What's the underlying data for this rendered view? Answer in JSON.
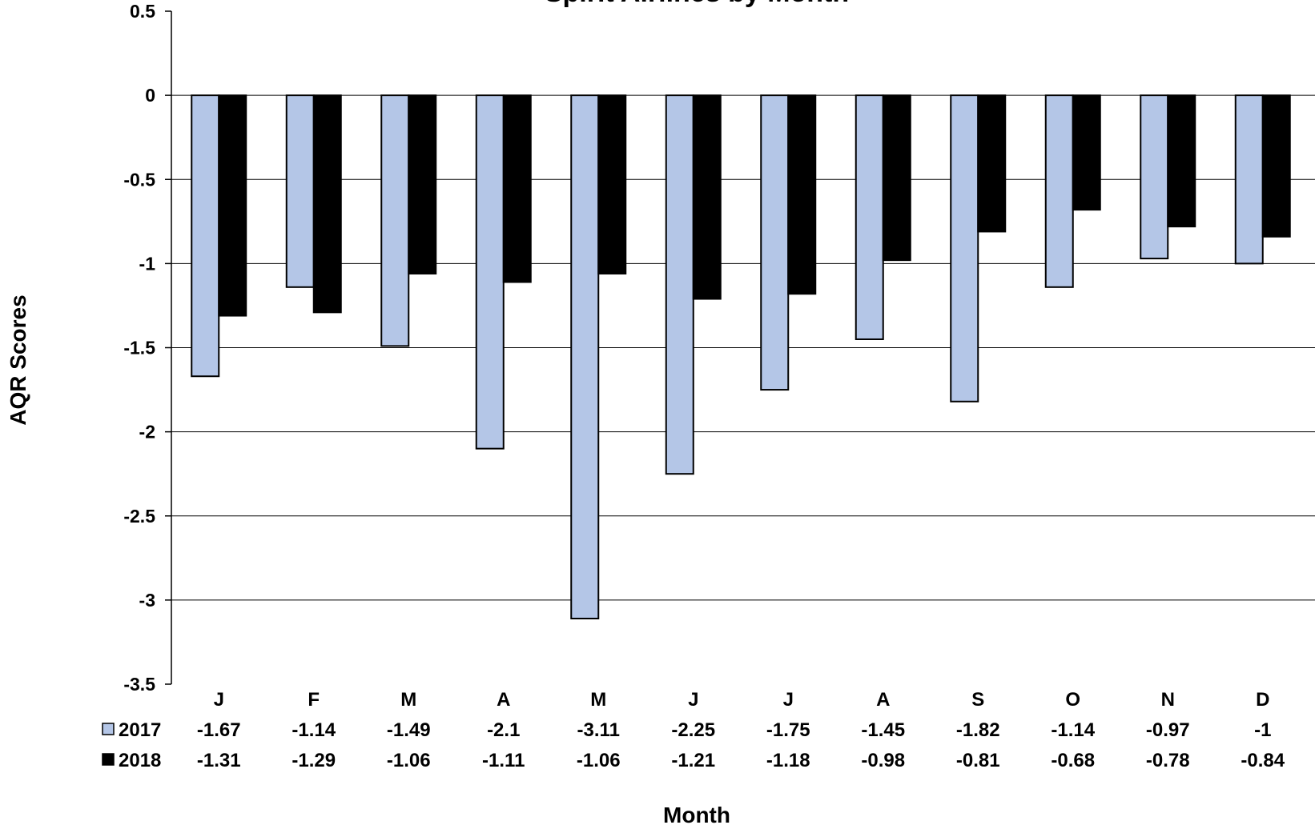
{
  "chart_data": {
    "type": "bar",
    "title": "Spirit Airlines by Month",
    "xlabel": "Month",
    "ylabel": "AQR Scores",
    "categories": [
      "J",
      "F",
      "M",
      "A",
      "M",
      "J",
      "J",
      "A",
      "S",
      "O",
      "N",
      "D"
    ],
    "series": [
      {
        "name": "2017",
        "color": "#b4c6e7",
        "values": [
          -1.67,
          -1.14,
          -1.49,
          -2.1,
          -3.11,
          -2.25,
          -1.75,
          -1.45,
          -1.82,
          -1.14,
          -0.97,
          -1
        ]
      },
      {
        "name": "2018",
        "color": "#000000",
        "values": [
          -1.31,
          -1.29,
          -1.06,
          -1.11,
          -1.06,
          -1.21,
          -1.18,
          -0.98,
          -0.81,
          -0.68,
          -0.78,
          -0.84
        ]
      }
    ],
    "ylim": [
      -3.5,
      0.5
    ],
    "yticks": [
      "0.5",
      "0",
      "-0.5",
      "-1",
      "-1.5",
      "-2",
      "-2.5",
      "-3",
      "-3.5"
    ],
    "table_values": [
      [
        "-1.67",
        "-1.14",
        "-1.49",
        "-2.1",
        "-3.11",
        "-2.25",
        "-1.75",
        "-1.45",
        "-1.82",
        "-1.14",
        "-0.97",
        "-1"
      ],
      [
        "-1.31",
        "-1.29",
        "-1.06",
        "-1.11",
        "-1.06",
        "-1.21",
        "-1.18",
        "-0.98",
        "-0.81",
        "-0.68",
        "-0.78",
        "-0.84"
      ]
    ],
    "grid": true,
    "legend": "data-table-left"
  }
}
